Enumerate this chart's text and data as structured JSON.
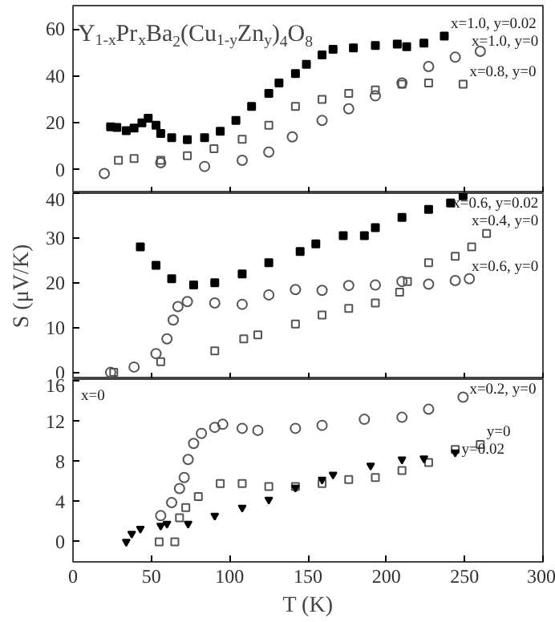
{
  "chart_data": [
    {
      "type": "scatter",
      "title": "Y$_{1-x}$Pr$_{x}$Ba$_{2}$(Cu$_{1-y}$Zn$_{y}$)$_{4}$O$_{8}$",
      "xlim": [
        0,
        300
      ],
      "xticks": [
        0,
        50,
        100,
        150,
        200,
        250,
        300
      ],
      "ylim": [
        -10,
        70
      ],
      "yticks": [
        0,
        20,
        40,
        60
      ],
      "tick_labels": "y",
      "grid": false,
      "legend": false,
      "series": [
        {
          "name": "x=1.0, y=0.02",
          "color": "#000000",
          "marker": "square",
          "x": [
            24,
            28,
            34,
            39,
            44,
            48,
            53,
            56,
            63,
            73,
            84,
            94,
            104,
            114,
            125,
            131.5,
            142,
            null,
            149,
            159,
            166,
            179,
            193,
            207,
            213,
            224,
            237
          ],
          "values": [
            18.3,
            18,
            16.7,
            17.8,
            20,
            22,
            19,
            15.5,
            13.7,
            12.8,
            13.7,
            16.4,
            21,
            27,
            32.6,
            37,
            41,
            null,
            45,
            49,
            51.4,
            52,
            53,
            53.6,
            52.5,
            54,
            57
          ]
        },
        {
          "name": "x=1.0, y=0",
          "color": "#555555",
          "marker": "circle",
          "x": [
            20,
            56,
            84,
            108,
            125,
            140,
            null,
            159,
            176,
            193,
            210,
            227,
            244,
            260
          ],
          "values": [
            -1.6,
            3,
            1.4,
            4,
            7.5,
            14,
            null,
            21,
            26,
            31.5,
            37,
            44,
            48,
            50.5
          ]
        },
        {
          "name": "x=0.8, y=0",
          "color": "#555555",
          "marker": "square",
          "x": [
            29,
            39,
            56,
            73,
            90,
            108,
            125,
            142,
            159,
            176,
            193,
            210,
            227,
            249
          ],
          "values": [
            4,
            4.8,
            4,
            6,
            9,
            13,
            19,
            27,
            30,
            32.6,
            34,
            36.5,
            37,
            36.5
          ]
        }
      ]
    },
    {
      "type": "scatter",
      "ylabel": "S (μV/K)",
      "xlim": [
        0,
        300
      ],
      "xticks": [
        0,
        50,
        100,
        150,
        200,
        250,
        300
      ],
      "ylim": [
        -1.5,
        40
      ],
      "yticks": [
        0,
        10,
        20,
        30,
        40
      ],
      "tick_labels": "y",
      "grid": false,
      "legend": false,
      "series": [
        {
          "name": "x=0.6, y=0.02",
          "color": "#000000",
          "marker": "square",
          "x": [
            43,
            53,
            63,
            77,
            90.5,
            108,
            125,
            145,
            null,
            155,
            172.5,
            186,
            193,
            210,
            227,
            241,
            249
          ],
          "values": [
            28,
            23.9,
            20.9,
            19.5,
            20,
            22,
            24.5,
            27,
            null,
            28.7,
            30.5,
            30.5,
            32.3,
            34.6,
            36.4,
            37.8,
            39.4
          ]
        },
        {
          "name": "x=0.6, y=0",
          "color": "#555555",
          "marker": "circle",
          "x": [
            24,
            39,
            53,
            60,
            64,
            67,
            73,
            90.5,
            108,
            125,
            142,
            159,
            176,
            193,
            210,
            227,
            244,
            253
          ],
          "values": [
            0,
            1.2,
            4.2,
            7.5,
            11.7,
            14.7,
            15.8,
            15.5,
            15.2,
            17.3,
            18.5,
            18.3,
            19.4,
            19.5,
            20.3,
            19.7,
            20.5,
            20.9
          ]
        },
        {
          "name": "x=0.4, y=0",
          "color": "#555555",
          "marker": "square",
          "x": [
            26,
            56,
            90.5,
            109,
            118,
            142,
            159,
            176,
            193,
            208.5,
            213.5,
            227,
            244,
            254.5,
            264
          ],
          "values": [
            0,
            2.4,
            4.8,
            7.5,
            8.4,
            10.8,
            12.8,
            14.3,
            15.5,
            17.9,
            20.3,
            24.5,
            25.9,
            28,
            31
          ]
        }
      ]
    },
    {
      "type": "scatter",
      "xlabel": "T (K)",
      "xlim": [
        0,
        300
      ],
      "xticks": [
        0,
        50,
        100,
        150,
        200,
        250,
        300
      ],
      "ylim": [
        -2,
        16.2
      ],
      "yticks": [
        0,
        4,
        8,
        12,
        16
      ],
      "grid": false,
      "legend": false,
      "series": [
        {
          "name": "x=0.2, y=0",
          "color": "#555555",
          "marker": "circle",
          "x": [
            56,
            63,
            68,
            71,
            73.5,
            77,
            82,
            90.5,
            95.6,
            108,
            118,
            142,
            159,
            186,
            210,
            227,
            249
          ],
          "values": [
            2.6,
            3.9,
            5.3,
            6.4,
            8.2,
            9.8,
            10.8,
            11.4,
            11.7,
            11.3,
            11.1,
            11.3,
            11.6,
            12.2,
            12.4,
            13.2,
            14.4
          ]
        },
        {
          "name": "y=0",
          "color": "#555555",
          "marker": "square",
          "x": [
            55,
            65,
            68,
            72,
            80,
            94,
            108,
            125,
            142,
            159,
            176,
            193,
            210,
            227,
            244,
            260
          ],
          "values": [
            0,
            0,
            2.4,
            3.4,
            4.5,
            5.8,
            5.8,
            5.5,
            5.5,
            5.8,
            6.2,
            6.4,
            7.1,
            7.9,
            9.2,
            9.7
          ]
        },
        {
          "name": "y=0.02",
          "color": "#000000",
          "marker": "triangle",
          "x": [
            34,
            37.5,
            43,
            56,
            60,
            73.5,
            90.5,
            108,
            125,
            142,
            159,
            166,
            190,
            null,
            210,
            224,
            244
          ],
          "values": [
            0,
            0.8,
            1.3,
            1.6,
            1.8,
            1.8,
            2.6,
            3.4,
            4.2,
            5.4,
            6.2,
            6.7,
            7.6,
            null,
            8.2,
            8.3,
            8.9
          ]
        }
      ],
      "annotations": [
        "x=0"
      ]
    }
  ]
}
